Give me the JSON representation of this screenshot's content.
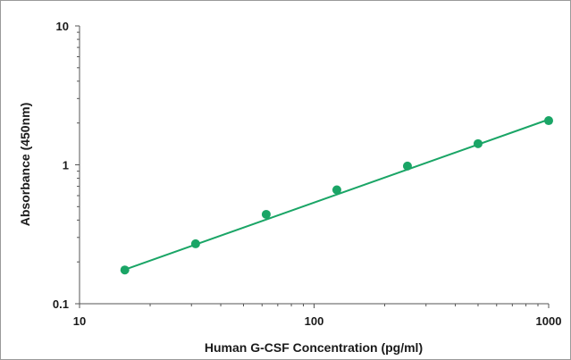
{
  "chart_data": {
    "type": "scatter",
    "title": "",
    "xlabel": "Human G-CSF Concentration (pg/ml)",
    "ylabel": "Absorbance (450nm)",
    "xscale": "log",
    "yscale": "log",
    "xlim": [
      10,
      1000
    ],
    "ylim": [
      0.1,
      10
    ],
    "x_tick_labels": [
      "10",
      "100",
      "1000"
    ],
    "y_tick_labels": [
      "0.1",
      "1",
      "10"
    ],
    "x_ticks": [
      10,
      100,
      1000
    ],
    "y_ticks": [
      0.1,
      1,
      10
    ],
    "grid": false,
    "legend": "none",
    "series": [
      {
        "x": [
          15.6,
          31.25,
          62.5,
          125,
          250,
          500,
          1000
        ],
        "y": [
          0.175,
          0.27,
          0.44,
          0.66,
          0.98,
          1.42,
          2.08
        ]
      }
    ],
    "trendline": {
      "type": "power",
      "x": [
        15.6,
        1000
      ],
      "y": [
        0.176,
        2.12
      ]
    },
    "colors": {
      "point": "#1aa566",
      "line": "#1aa566",
      "axis": "#555555",
      "frame": "#9a9a9a"
    }
  }
}
